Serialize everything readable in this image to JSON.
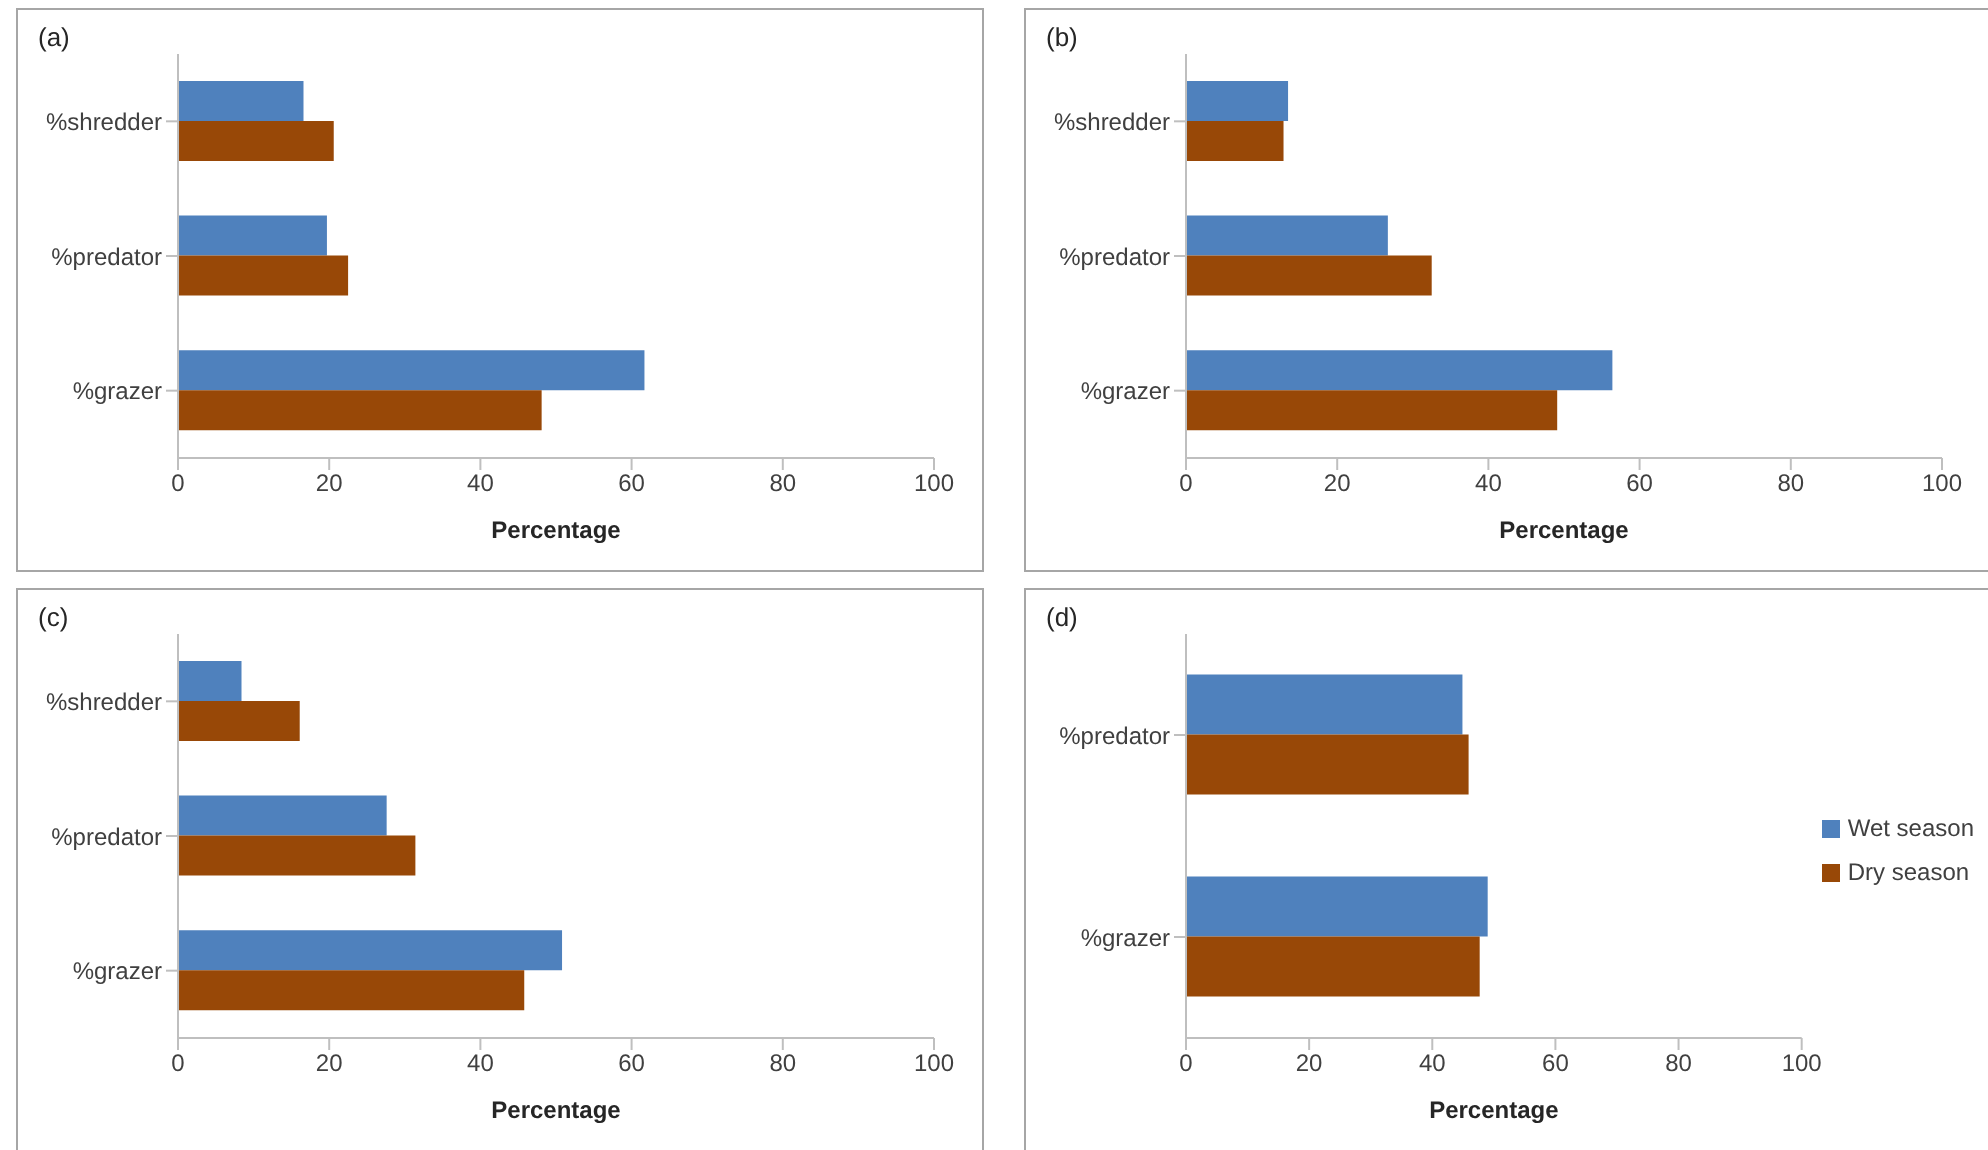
{
  "chart_data": [
    {
      "type": "bar",
      "orientation": "horizontal",
      "title": "(a)",
      "xlabel": "Percentage",
      "categories": [
        "%shredder",
        "%predator",
        "%grazer"
      ],
      "series": [
        {
          "color": "#4f81bd",
          "values": [
            16.6,
            19.7,
            61.7
          ]
        },
        {
          "color": "#984807",
          "values": [
            20.6,
            22.5,
            48.1
          ]
        }
      ],
      "xlim": [
        0,
        100
      ],
      "xticks": [
        0,
        20,
        40,
        60,
        80,
        100
      ],
      "grid": false,
      "legend": false
    },
    {
      "type": "bar",
      "orientation": "horizontal",
      "title": "(b)",
      "xlabel": "Percentage",
      "categories": [
        "%shredder",
        "%predator",
        "%grazer"
      ],
      "series": [
        {
          "color": "#4f81bd",
          "values": [
            13.5,
            26.7,
            56.4
          ]
        },
        {
          "color": "#984807",
          "values": [
            12.9,
            32.5,
            49.1
          ]
        }
      ],
      "xlim": [
        0,
        100
      ],
      "xticks": [
        0,
        20,
        40,
        60,
        80,
        100
      ],
      "grid": false,
      "legend": false
    },
    {
      "type": "bar",
      "orientation": "horizontal",
      "title": "(c)",
      "xlabel": "Percentage",
      "categories": [
        "%shredder",
        "%predator",
        "%grazer"
      ],
      "series": [
        {
          "color": "#4f81bd",
          "values": [
            8.4,
            27.6,
            50.8
          ]
        },
        {
          "color": "#984807",
          "values": [
            16.1,
            31.4,
            45.8
          ]
        }
      ],
      "xlim": [
        0,
        100
      ],
      "xticks": [
        0,
        20,
        40,
        60,
        80,
        100
      ],
      "grid": false,
      "legend": false
    },
    {
      "type": "bar",
      "orientation": "horizontal",
      "title": "(d)",
      "xlabel": "Percentage",
      "categories": [
        "%predator",
        "%grazer"
      ],
      "series": [
        {
          "name": "Wet season",
          "color": "#4f81bd",
          "values": [
            44.9,
            49.0
          ]
        },
        {
          "name": "Dry season",
          "color": "#984807",
          "values": [
            45.9,
            47.7
          ]
        }
      ],
      "xlim": [
        0,
        100
      ],
      "xticks": [
        0,
        20,
        40,
        60,
        80,
        100
      ],
      "grid": false,
      "legend": "right"
    }
  ]
}
